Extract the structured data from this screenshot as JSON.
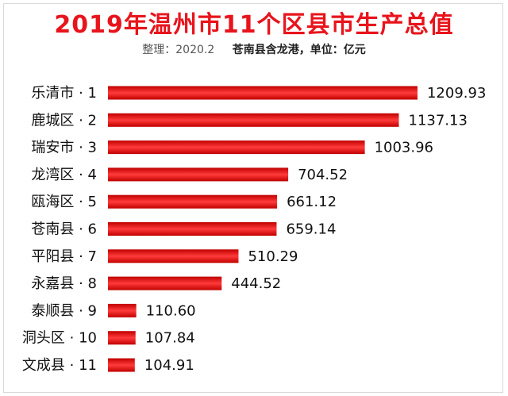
{
  "header": {
    "title": "2019年温州市11个区县市生产总值",
    "subtitle_left": "整理：2020.2",
    "subtitle_right": "苍南县含龙港，单位：亿元"
  },
  "colors": {
    "title": "#e8141c",
    "bar_dark": "#c00000",
    "bar_light": "#ff3b3b"
  },
  "chart_data": {
    "type": "bar",
    "orientation": "horizontal",
    "title": "2019年温州市11个区县市生产总值",
    "categories": [
      "乐清市 · 1",
      "鹿城区 · 2",
      "瑞安市 · 3",
      "龙湾区 · 4",
      "瓯海区 · 5",
      "苍南县 · 6",
      "平阳县 · 7",
      "永嘉县 · 8",
      "泰顺县 · 9",
      "洞头区 · 10",
      "文成县 · 11"
    ],
    "values": [
      1209.93,
      1137.13,
      1003.96,
      704.52,
      661.12,
      659.14,
      510.29,
      444.52,
      110.6,
      107.84,
      104.91
    ],
    "value_labels": [
      "1209.93",
      "1137.13",
      "1003.96",
      "704.52",
      "661.12",
      "659.14",
      "510.29",
      "444.52",
      "110.60",
      "107.84",
      "104.91"
    ],
    "xlim": [
      0,
      1210
    ],
    "grid": false,
    "legend": "none"
  }
}
